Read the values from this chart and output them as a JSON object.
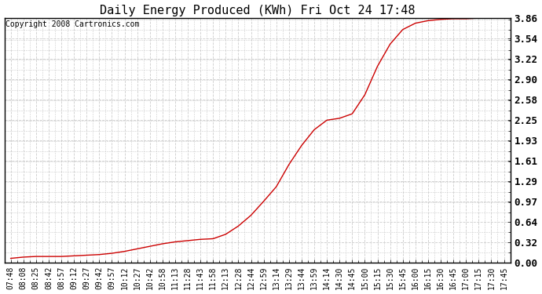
{
  "title": "Daily Energy Produced (KWh) Fri Oct 24 17:48",
  "copyright_text": "Copyright 2008 Cartronics.com",
  "x_labels": [
    "07:48",
    "08:08",
    "08:25",
    "08:42",
    "08:57",
    "09:12",
    "09:27",
    "09:42",
    "09:57",
    "10:12",
    "10:27",
    "10:42",
    "10:58",
    "11:13",
    "11:28",
    "11:43",
    "11:58",
    "12:13",
    "12:28",
    "12:44",
    "12:59",
    "13:14",
    "13:29",
    "13:44",
    "13:59",
    "14:14",
    "14:30",
    "14:45",
    "15:00",
    "15:15",
    "15:30",
    "15:45",
    "16:00",
    "16:15",
    "16:30",
    "16:45",
    "17:00",
    "17:15",
    "17:30",
    "17:45"
  ],
  "y_ticks": [
    0.0,
    0.32,
    0.64,
    0.97,
    1.29,
    1.61,
    1.93,
    2.25,
    2.58,
    2.9,
    3.22,
    3.54,
    3.86
  ],
  "y_min": 0.0,
  "y_max": 3.86,
  "line_color": "#cc0000",
  "background_color": "#ffffff",
  "plot_bg_color": "#ffffff",
  "grid_color": "#cccccc",
  "border_color": "#000000",
  "y_data_values": [
    0.07,
    0.09,
    0.1,
    0.1,
    0.1,
    0.11,
    0.12,
    0.13,
    0.15,
    0.18,
    0.22,
    0.26,
    0.3,
    0.33,
    0.35,
    0.37,
    0.38,
    0.45,
    0.58,
    0.75,
    0.97,
    1.2,
    1.55,
    1.85,
    2.1,
    2.25,
    2.28,
    2.35,
    2.65,
    3.1,
    3.45,
    3.68,
    3.78,
    3.82,
    3.84,
    3.85,
    3.85,
    3.86,
    3.86,
    3.86
  ],
  "title_fontsize": 11,
  "tick_fontsize": 7,
  "ytick_fontsize": 9,
  "copyright_fontsize": 7
}
